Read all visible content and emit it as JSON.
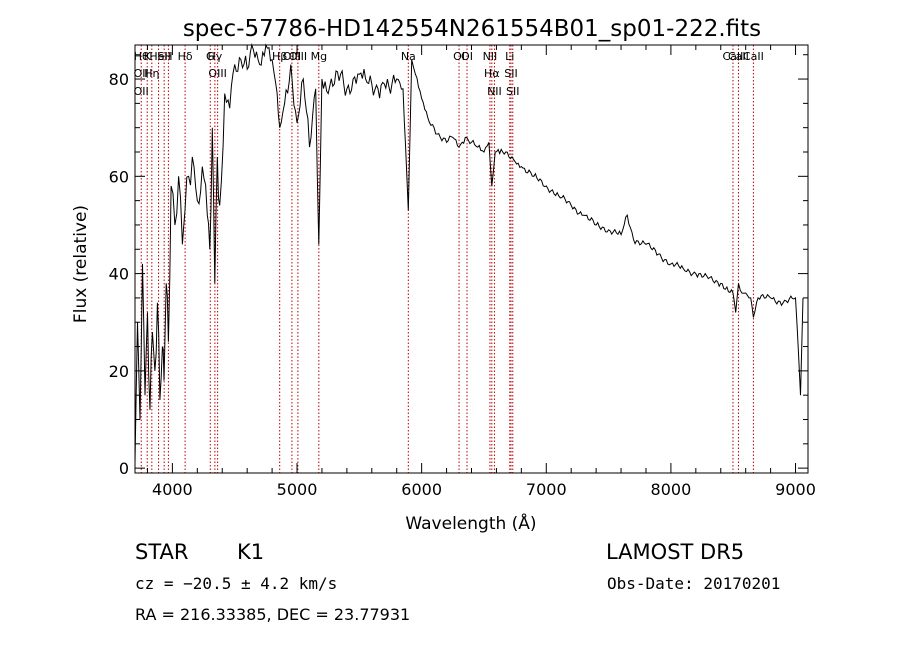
{
  "chart_data": {
    "type": "line",
    "title": "spec-57786-HD142554N261554B01_sp01-222.fits",
    "xlabel": "Wavelength (Å)",
    "ylabel": "Flux (relative)",
    "xlim": [
      3700,
      9100
    ],
    "ylim": [
      -1,
      87
    ],
    "xticks": [
      4000,
      5000,
      6000,
      7000,
      8000,
      9000
    ],
    "yticks": [
      0,
      20,
      40,
      60,
      80
    ],
    "grid": false,
    "series": [
      {
        "x": [
          3700,
          3720,
          3740,
          3760,
          3780,
          3800,
          3820,
          3840,
          3860,
          3880,
          3900,
          3920,
          3933,
          3950,
          3968,
          3990,
          4020,
          4050,
          4080,
          4101,
          4130,
          4160,
          4200,
          4240,
          4280,
          4300,
          4320,
          4340,
          4360,
          4380,
          4420,
          4460,
          4500,
          4550,
          4600,
          4650,
          4700,
          4750,
          4800,
          4830,
          4861,
          4900,
          4950,
          5000,
          5050,
          5100,
          5150,
          5175,
          5200,
          5250,
          5300,
          5350,
          5400,
          5450,
          5500,
          5550,
          5600,
          5650,
          5700,
          5750,
          5800,
          5850,
          5893,
          5920,
          5950,
          6000,
          6050,
          6100,
          6150,
          6200,
          6250,
          6300,
          6350,
          6400,
          6450,
          6500,
          6540,
          6563,
          6590,
          6650,
          6700,
          6750,
          6800,
          6900,
          7000,
          7100,
          7200,
          7300,
          7400,
          7500,
          7600,
          7650,
          7700,
          7800,
          7900,
          8000,
          8100,
          8200,
          8300,
          8400,
          8498,
          8520,
          8542,
          8570,
          8600,
          8640,
          8662,
          8700,
          8800,
          8900,
          9000,
          9040,
          9060
        ],
        "y": [
          1,
          30,
          10,
          42,
          15,
          32,
          12,
          28,
          20,
          34,
          14,
          25,
          18,
          38,
          26,
          58,
          50,
          60,
          46,
          53,
          60,
          64,
          55,
          62,
          52,
          45,
          70,
          38,
          64,
          54,
          77,
          74,
          83,
          84,
          82,
          86,
          83,
          87,
          84,
          79,
          70,
          75,
          83,
          71,
          80,
          66,
          78,
          46,
          80,
          77,
          79,
          81,
          78,
          80,
          81,
          80,
          79,
          78,
          79,
          77,
          80,
          78,
          53,
          84,
          81,
          76,
          72,
          70,
          68,
          67,
          68,
          66,
          68,
          67,
          66,
          65,
          67,
          58,
          65,
          65,
          64,
          63,
          62,
          60,
          58,
          56,
          54,
          52,
          50,
          49,
          48,
          52,
          47,
          46,
          44,
          42,
          41,
          40,
          39,
          38,
          36,
          32,
          38,
          36,
          36,
          35,
          31,
          35,
          35,
          34,
          35,
          15,
          35
        ]
      }
    ],
    "lines": [
      {
        "x": 3750,
        "labels": [
          "Hθ",
          "OII",
          "OII"
        ]
      },
      {
        "x": 3798,
        "labels": [
          "K"
        ]
      },
      {
        "x": 3835,
        "labels": [
          "Hη"
        ]
      },
      {
        "x": 3889,
        "labels": [
          "HeI"
        ]
      },
      {
        "x": 3934,
        "labels": [
          "SII"
        ]
      },
      {
        "x": 3968,
        "labels": [
          "H"
        ]
      },
      {
        "x": 4102,
        "labels": [
          "Hδ"
        ]
      },
      {
        "x": 4304,
        "labels": [
          "G"
        ]
      },
      {
        "x": 4341,
        "labels": [
          "Hγ"
        ]
      },
      {
        "x": 4363,
        "labels": [
          "OIII"
        ]
      },
      {
        "x": 4861,
        "labels": [
          "Hβ"
        ]
      },
      {
        "x": 4959,
        "labels": [
          "OIII"
        ]
      },
      {
        "x": 5007,
        "labels": [
          "OIII"
        ]
      },
      {
        "x": 5175,
        "labels": [
          "Mg"
        ]
      },
      {
        "x": 5893,
        "labels": [
          "Na"
        ]
      },
      {
        "x": 6300,
        "labels": [
          "OI"
        ]
      },
      {
        "x": 6364,
        "labels": [
          "OI"
        ]
      },
      {
        "x": 6548,
        "labels": [
          "NII"
        ]
      },
      {
        "x": 6563,
        "labels": [
          "Hα"
        ]
      },
      {
        "x": 6584,
        "labels": [
          "NII"
        ]
      },
      {
        "x": 6707,
        "labels": [
          "Li"
        ]
      },
      {
        "x": 6717,
        "labels": [
          "SII"
        ]
      },
      {
        "x": 6731,
        "labels": [
          "SII"
        ]
      },
      {
        "x": 8498,
        "labels": [
          "CaII"
        ]
      },
      {
        "x": 8542,
        "labels": [
          "CaII"
        ]
      },
      {
        "x": 8662,
        "labels": [
          "CaII"
        ]
      }
    ]
  },
  "info": {
    "object_class": "STAR",
    "subclass": "K1",
    "survey": "LAMOST DR5",
    "redshift_text": "cz = −20.5 ± 4.2 km/s",
    "obs_date_text": "Obs-Date: 20170201",
    "coords_text": "RA = 216.33385, DEC =  23.77931"
  }
}
